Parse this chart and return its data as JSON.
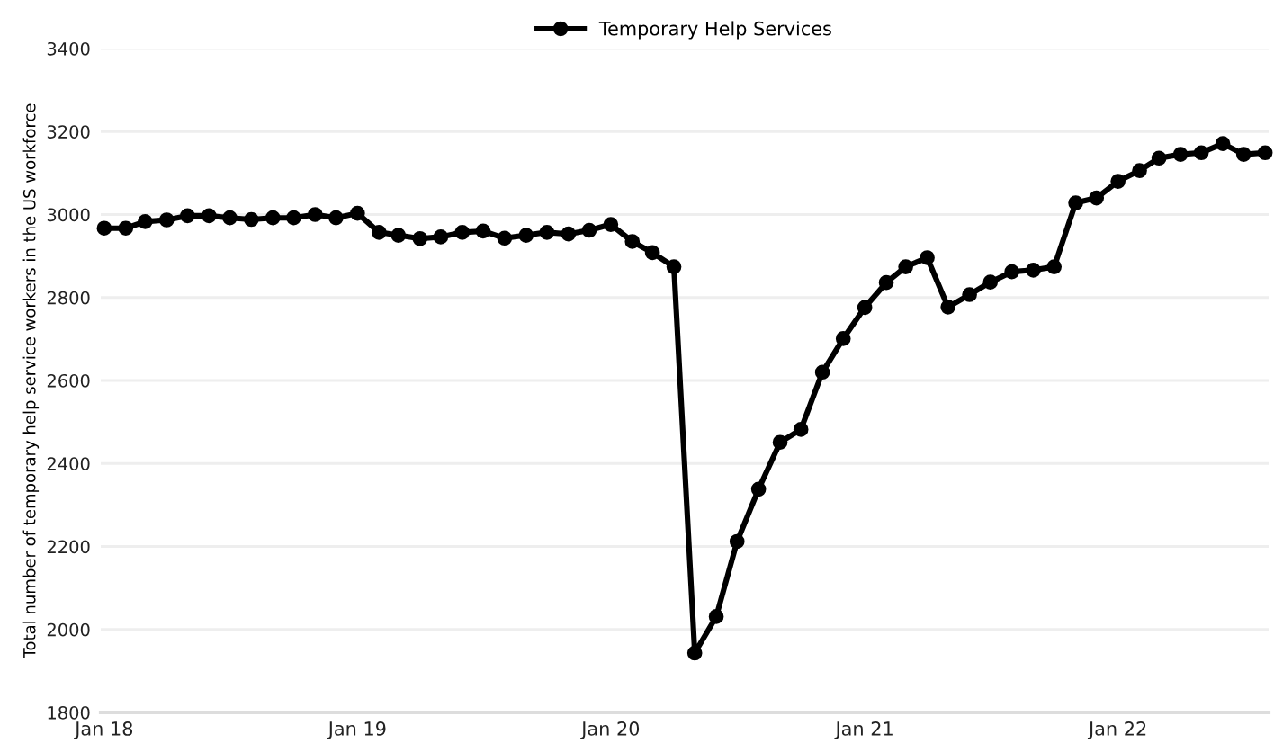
{
  "chart_data": {
    "type": "line",
    "ylabel": "Total number of temporary help service workers in the US workforce",
    "x": [
      "2018-01",
      "2018-02",
      "2018-03",
      "2018-04",
      "2018-05",
      "2018-06",
      "2018-07",
      "2018-08",
      "2018-09",
      "2018-10",
      "2018-11",
      "2018-12",
      "2019-01",
      "2019-02",
      "2019-03",
      "2019-04",
      "2019-05",
      "2019-06",
      "2019-07",
      "2019-08",
      "2019-09",
      "2019-10",
      "2019-11",
      "2019-12",
      "2020-01",
      "2020-02",
      "2020-03",
      "2020-04",
      "2020-05",
      "2020-06",
      "2020-07",
      "2020-08",
      "2020-09",
      "2020-10",
      "2020-11",
      "2020-12",
      "2021-01",
      "2021-02",
      "2021-03",
      "2021-04",
      "2021-05",
      "2021-06",
      "2021-07",
      "2021-08",
      "2021-09",
      "2021-10",
      "2021-11",
      "2021-12",
      "2022-01",
      "2022-02",
      "2022-03",
      "2022-04",
      "2022-05",
      "2022-06",
      "2022-07",
      "2022-08"
    ],
    "series": [
      {
        "name": "Temporary Help Services",
        "color": "#000000",
        "values": [
          2967,
          2967,
          2983,
          2987,
          2997,
          2997,
          2992,
          2988,
          2992,
          2992,
          3000,
          2992,
          3003,
          2957,
          2950,
          2942,
          2946,
          2957,
          2960,
          2943,
          2950,
          2957,
          2953,
          2962,
          2976,
          2935,
          2908,
          2874,
          1943,
          2031,
          2212,
          2338,
          2451,
          2482,
          2620,
          2701,
          2776,
          2836,
          2874,
          2896,
          2777,
          2807,
          2837,
          2862,
          2866,
          2874,
          3028,
          3040,
          3080,
          3106,
          3136,
          3145,
          3149,
          3171,
          3145,
          3149
        ]
      }
    ],
    "xlim": [
      "2017-12-27",
      "2022-08-06"
    ],
    "xticks": [
      {
        "value": "2018-01-01",
        "label": "Jan 18"
      },
      {
        "value": "2019-01-01",
        "label": "Jan 19"
      },
      {
        "value": "2020-01-01",
        "label": "Jan 20"
      },
      {
        "value": "2021-01-01",
        "label": "Jan 21"
      },
      {
        "value": "2022-01-01",
        "label": "Jan 22"
      }
    ],
    "ylim": [
      1800,
      3400
    ],
    "yticks": [
      1800,
      2000,
      2200,
      2400,
      2600,
      2800,
      3000,
      3200,
      3400
    ],
    "grid": "y",
    "legend": "top",
    "marker": "circle",
    "line_style": "solid"
  }
}
